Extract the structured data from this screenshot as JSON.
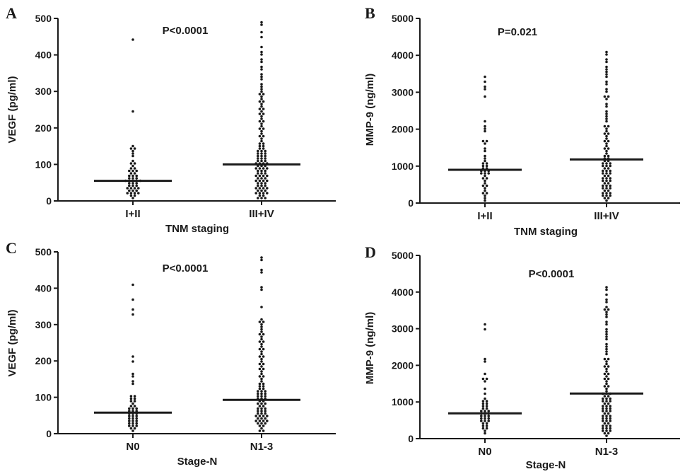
{
  "chart_data": [
    {
      "type": "scatter",
      "panel_label": "A",
      "title": "",
      "annotation": "P<0.0001",
      "xlabel": "TNM staging",
      "ylabel": "VEGF (pg/ml)",
      "ylim": [
        0,
        500
      ],
      "yticks": [
        0,
        100,
        200,
        300,
        400,
        500
      ],
      "categories": [
        "I+II",
        "III+IV"
      ],
      "medians": [
        55,
        100
      ],
      "groups": [
        {
          "label": "I+II",
          "values": [
            443,
            248,
            148,
            145,
            142,
            138,
            130,
            120,
            110,
            105,
            100,
            95,
            90,
            88,
            85,
            82,
            80,
            78,
            75,
            72,
            70,
            68,
            65,
            62,
            60,
            58,
            56,
            55,
            54,
            52,
            50,
            48,
            46,
            44,
            42,
            40,
            38,
            36,
            34,
            32,
            30,
            28,
            26,
            24,
            22,
            20,
            18,
            15,
            12,
            10
          ]
        },
        {
          "label": "III+IV",
          "values": [
            487,
            480,
            460,
            450,
            420,
            410,
            400,
            390,
            380,
            370,
            360,
            350,
            340,
            330,
            320,
            310,
            305,
            300,
            295,
            290,
            285,
            280,
            275,
            270,
            265,
            260,
            255,
            250,
            245,
            240,
            235,
            230,
            225,
            220,
            215,
            210,
            205,
            200,
            195,
            190,
            185,
            180,
            175,
            170,
            165,
            160,
            155,
            150,
            148,
            145,
            142,
            140,
            138,
            135,
            132,
            130,
            128,
            125,
            122,
            120,
            118,
            116,
            114,
            112,
            110,
            108,
            106,
            104,
            102,
            100,
            98,
            96,
            94,
            92,
            90,
            88,
            86,
            84,
            82,
            80,
            78,
            76,
            74,
            72,
            70,
            68,
            66,
            64,
            62,
            60,
            58,
            56,
            54,
            52,
            50,
            48,
            46,
            44,
            42,
            40,
            38,
            36,
            34,
            32,
            30,
            28,
            26,
            24,
            22,
            20,
            18,
            15,
            12,
            10,
            8,
            5
          ]
        }
      ]
    },
    {
      "type": "scatter",
      "panel_label": "B",
      "title": "",
      "annotation": "P=0.021",
      "xlabel": "TNM staging",
      "ylabel": "MMP-9 (ng/ml)",
      "ylim": [
        0,
        5000
      ],
      "yticks": [
        0,
        1000,
        2000,
        3000,
        4000,
        5000
      ],
      "categories": [
        "I+II",
        "III+IV"
      ],
      "medians": [
        900,
        1180
      ],
      "groups": [
        {
          "label": "I+II",
          "values": [
            3400,
            3300,
            3150,
            3100,
            2900,
            2200,
            2100,
            2000,
            1950,
            1700,
            1650,
            1600,
            1500,
            1400,
            1300,
            1200,
            1150,
            1100,
            1050,
            1000,
            980,
            950,
            920,
            900,
            880,
            850,
            820,
            800,
            780,
            750,
            700,
            650,
            600,
            550,
            500,
            450,
            400,
            350,
            300,
            250,
            200,
            150,
            100
          ]
        },
        {
          "label": "III+IV",
          "values": [
            4100,
            4050,
            3900,
            3800,
            3700,
            3600,
            3550,
            3500,
            3400,
            3300,
            3200,
            3100,
            3000,
            2900,
            2850,
            2800,
            2700,
            2600,
            2500,
            2400,
            2350,
            2300,
            2200,
            2100,
            2050,
            2000,
            1950,
            1900,
            1850,
            1800,
            1750,
            1700,
            1650,
            1600,
            1550,
            1500,
            1450,
            1400,
            1350,
            1300,
            1250,
            1200,
            1180,
            1150,
            1120,
            1100,
            1080,
            1050,
            1020,
            1000,
            980,
            950,
            920,
            900,
            880,
            850,
            820,
            800,
            780,
            750,
            720,
            700,
            680,
            650,
            620,
            600,
            580,
            550,
            520,
            500,
            480,
            450,
            420,
            400,
            380,
            350,
            320,
            300,
            280,
            250,
            220,
            200,
            180,
            150,
            120,
            100
          ]
        }
      ]
    },
    {
      "type": "scatter",
      "panel_label": "C",
      "title": "",
      "annotation": "P<0.0001",
      "xlabel": "Stage-N",
      "ylabel": "VEGF (pg/ml)",
      "ylim": [
        0,
        500
      ],
      "yticks": [
        0,
        100,
        200,
        300,
        400,
        500
      ],
      "categories": [
        "N0",
        "N1-3"
      ],
      "medians": [
        58,
        93
      ],
      "groups": [
        {
          "label": "N0",
          "values": [
            410,
            372,
            340,
            330,
            210,
            200,
            162,
            160,
            145,
            140,
            105,
            100,
            98,
            95,
            92,
            90,
            80,
            78,
            75,
            72,
            70,
            68,
            65,
            62,
            60,
            58,
            56,
            54,
            52,
            50,
            48,
            45,
            42,
            40,
            38,
            35,
            32,
            30,
            28,
            25,
            22,
            20,
            18,
            15,
            12,
            10
          ]
        },
        {
          "label": "N1-3",
          "values": [
            487,
            480,
            450,
            445,
            400,
            395,
            350,
            315,
            310,
            305,
            300,
            295,
            290,
            280,
            275,
            270,
            265,
            260,
            255,
            250,
            245,
            240,
            235,
            230,
            225,
            220,
            215,
            210,
            205,
            200,
            195,
            190,
            185,
            180,
            175,
            170,
            165,
            160,
            155,
            150,
            145,
            140,
            135,
            130,
            128,
            125,
            122,
            120,
            118,
            115,
            112,
            110,
            108,
            105,
            102,
            100,
            98,
            95,
            93,
            90,
            88,
            85,
            82,
            80,
            78,
            75,
            72,
            70,
            68,
            65,
            62,
            60,
            58,
            56,
            54,
            52,
            50,
            48,
            46,
            44,
            42,
            40,
            38,
            36,
            34,
            32,
            30,
            28,
            25,
            22,
            20,
            15,
            10,
            5
          ]
        }
      ]
    },
    {
      "type": "scatter",
      "panel_label": "D",
      "title": "",
      "annotation": "P<0.0001",
      "xlabel": "Stage-N",
      "ylabel": "MMP-9 (ng/ml)",
      "ylim": [
        0,
        5000
      ],
      "yticks": [
        0,
        1000,
        2000,
        3000,
        4000,
        5000
      ],
      "categories": [
        "N0",
        "N1-3"
      ],
      "medians": [
        690,
        1230
      ],
      "groups": [
        {
          "label": "N0",
          "values": [
            3150,
            3000,
            2200,
            2100,
            1800,
            1650,
            1600,
            1550,
            1350,
            1200,
            1100,
            1050,
            1000,
            980,
            950,
            920,
            900,
            850,
            800,
            780,
            750,
            720,
            700,
            690,
            680,
            650,
            620,
            600,
            580,
            550,
            520,
            500,
            480,
            450,
            420,
            400,
            380,
            350,
            300,
            250,
            200,
            150
          ]
        },
        {
          "label": "N1-3",
          "values": [
            4150,
            4050,
            3900,
            3800,
            3700,
            3600,
            3550,
            3500,
            3450,
            3400,
            3300,
            3200,
            3100,
            3000,
            2900,
            2850,
            2800,
            2700,
            2600,
            2500,
            2450,
            2400,
            2300,
            2200,
            2150,
            2100,
            2050,
            2000,
            1950,
            1900,
            1850,
            1800,
            1750,
            1700,
            1650,
            1600,
            1550,
            1500,
            1450,
            1400,
            1350,
            1300,
            1250,
            1230,
            1200,
            1180,
            1150,
            1120,
            1100,
            1080,
            1050,
            1020,
            1000,
            980,
            950,
            920,
            900,
            880,
            850,
            820,
            800,
            780,
            750,
            720,
            700,
            680,
            650,
            620,
            600,
            580,
            550,
            520,
            500,
            480,
            450,
            420,
            400,
            380,
            350,
            320,
            300,
            280,
            250,
            220,
            200,
            180,
            150,
            120,
            100
          ]
        }
      ]
    }
  ]
}
